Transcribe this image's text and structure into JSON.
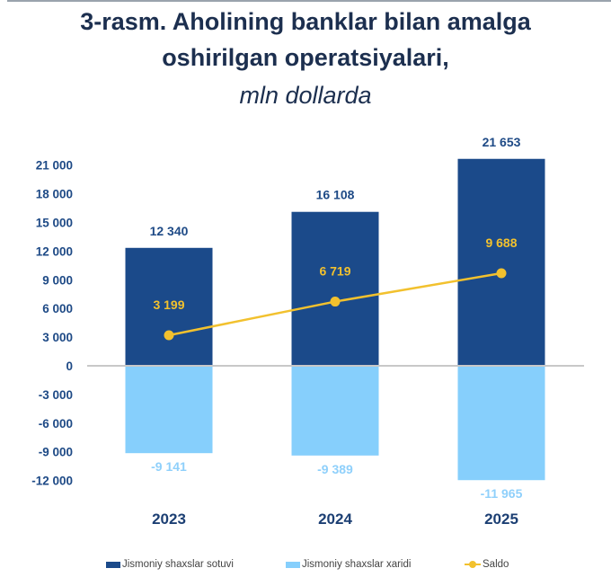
{
  "title": {
    "line1": "3-rasm. Aholining banklar bilan amalga",
    "line2": "oshirilgan operatsiyalari,",
    "subtitle": "mln dollarda"
  },
  "colors": {
    "sotuvi": "#1b4a8a",
    "xaridi": "#86cffc",
    "saldo": "#f2c12e",
    "axis_text": "#1e4a86",
    "title": "#1c2f4f",
    "zero_line": "#c8c8c8"
  },
  "axis": {
    "y_ticks": [
      "21 000",
      "18 000",
      "15 000",
      "12 000",
      "9 000",
      "6 000",
      "3 000",
      "0",
      "-3 000",
      "-6 000",
      "-9 000",
      "-12 000"
    ],
    "x_ticks": [
      "2023",
      "2024",
      "2025"
    ]
  },
  "labels": {
    "sotuvi": [
      "12 340",
      "16 108",
      "21 653"
    ],
    "xaridi": [
      "-9 141",
      "-9 389",
      "-11 965"
    ],
    "saldo": [
      "3 199",
      "6 719",
      "9 688"
    ]
  },
  "legend": {
    "sotuvi": "Jismoniy shaxslar sotuvi",
    "xaridi": "Jismoniy shaxslar xaridi",
    "saldo": "Saldo"
  },
  "chart_data": {
    "type": "bar",
    "title": "3-rasm. Aholining banklar bilan amalga oshirilgan operatsiyalari, mln dollarda",
    "categories": [
      "2023",
      "2024",
      "2025"
    ],
    "series": [
      {
        "name": "Jismoniy shaxslar sotuvi",
        "type": "bar",
        "values": [
          12340,
          16108,
          21653
        ]
      },
      {
        "name": "Jismoniy shaxslar xaridi",
        "type": "bar",
        "values": [
          -9141,
          -9389,
          -11965
        ]
      },
      {
        "name": "Saldo",
        "type": "line",
        "values": [
          3199,
          6719,
          9688
        ]
      }
    ],
    "xlabel": "",
    "ylabel": "",
    "ylim": [
      -12000,
      21000
    ],
    "y_tick_step": 3000,
    "stacked": true,
    "grid": false,
    "legend_position": "bottom"
  }
}
